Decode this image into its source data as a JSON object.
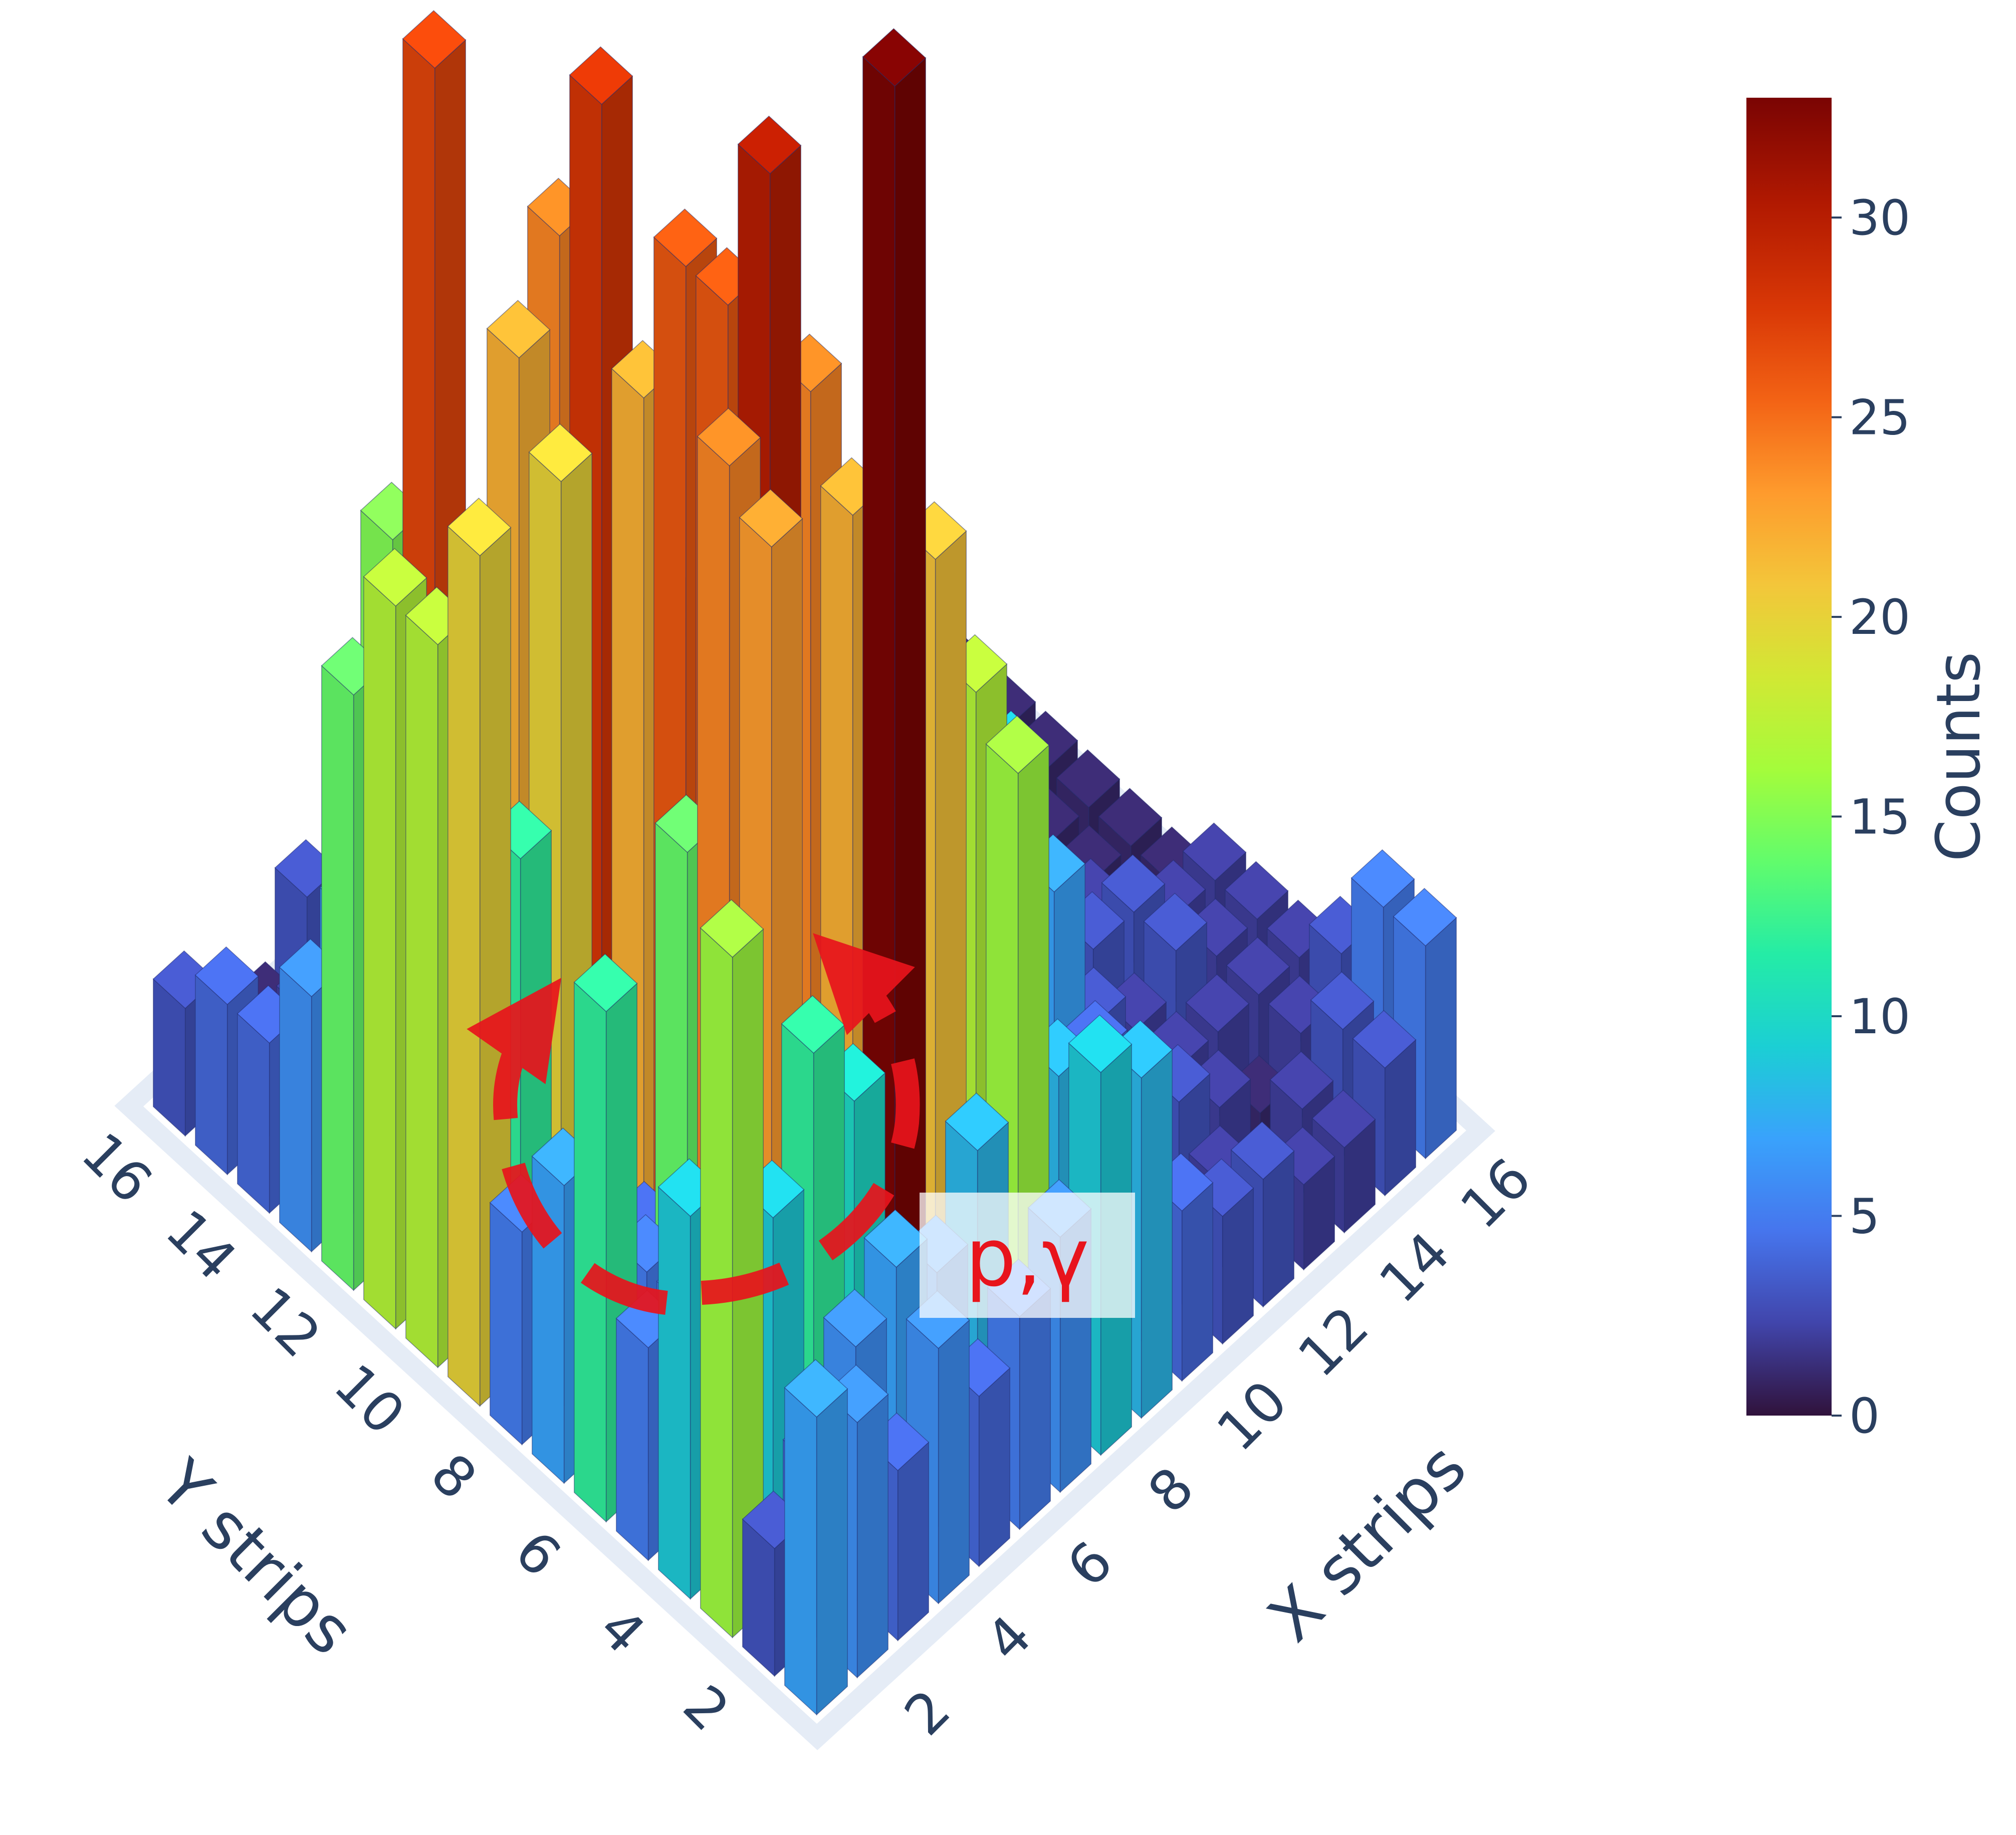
{
  "chart_data": {
    "type": "bar3d",
    "x_axis": {
      "title": "X strips",
      "ticks": [
        "2",
        "4",
        "6",
        "8",
        "10",
        "12",
        "14",
        "16"
      ]
    },
    "y_axis": {
      "title": "Y strips",
      "ticks": [
        "2",
        "4",
        "6",
        "8",
        "10",
        "12",
        "14",
        "16"
      ]
    },
    "z_axis": {
      "title": "",
      "range": [
        0,
        33
      ]
    },
    "colorbar": {
      "title": "Counts",
      "ticks": [
        "0",
        "5",
        "10",
        "15",
        "20",
        "25",
        "30"
      ],
      "range": [
        0,
        33
      ],
      "colorscale": "turbo"
    },
    "annotation": {
      "text": "p,γ"
    },
    "counts": [
      [
        7,
        3,
        16,
        9,
        5,
        12,
        7,
        5,
        20,
        17,
        17,
        14,
        6,
        4,
        4,
        3
      ],
      [
        6,
        4,
        9,
        6,
        5,
        5,
        4,
        3,
        12,
        16,
        13,
        12,
        7,
        3,
        2,
        2
      ],
      [
        4,
        6,
        12,
        23,
        24,
        14,
        4,
        2,
        20,
        22,
        6,
        27,
        15,
        3,
        2,
        1
      ],
      [
        6,
        7,
        10,
        10,
        30,
        26,
        26,
        22,
        28,
        24,
        15,
        4,
        3,
        2,
        1,
        3
      ],
      [
        4,
        6,
        33,
        22,
        24,
        16,
        10,
        6,
        12,
        13,
        4,
        3,
        2,
        1,
        2,
        1
      ],
      [
        5,
        8,
        21,
        13,
        6,
        6,
        4,
        4,
        2,
        6,
        2,
        1,
        3,
        2,
        1,
        1
      ],
      [
        6,
        16,
        17,
        10,
        6,
        7,
        3,
        4,
        5,
        3,
        2,
        2,
        1,
        2,
        1,
        1
      ],
      [
        9,
        8,
        8,
        5,
        9,
        4,
        5,
        6,
        4,
        3,
        2,
        1,
        1,
        2,
        1,
        1
      ],
      [
        8,
        5,
        5,
        4,
        7,
        4,
        9,
        9,
        5,
        4,
        2,
        1,
        2,
        1,
        1,
        1
      ],
      [
        4,
        4,
        5,
        3,
        5,
        9,
        8,
        6,
        3,
        1,
        2,
        1,
        1,
        1,
        3,
        2
      ],
      [
        3,
        2,
        2,
        4,
        7,
        9,
        8,
        5,
        2,
        1,
        2,
        1,
        1,
        1,
        2,
        2
      ],
      [
        3,
        2,
        3,
        2,
        3,
        2,
        2,
        2,
        1,
        2,
        2,
        1,
        1,
        1,
        2,
        2
      ],
      [
        2,
        1,
        2,
        2,
        2,
        3,
        2,
        1,
        1,
        2,
        1,
        1,
        1,
        1,
        2,
        1
      ],
      [
        2,
        2,
        1,
        2,
        3,
        3,
        2,
        1,
        1,
        1,
        1,
        1,
        1,
        1,
        1,
        1
      ],
      [
        3,
        3,
        2,
        2,
        2,
        2,
        1,
        1,
        1,
        1,
        1,
        1,
        2,
        1,
        1,
        1
      ],
      [
        5,
        5,
        3,
        2,
        2,
        2,
        1,
        1,
        1,
        1,
        1,
        1,
        1,
        1,
        1,
        1
      ]
    ]
  }
}
